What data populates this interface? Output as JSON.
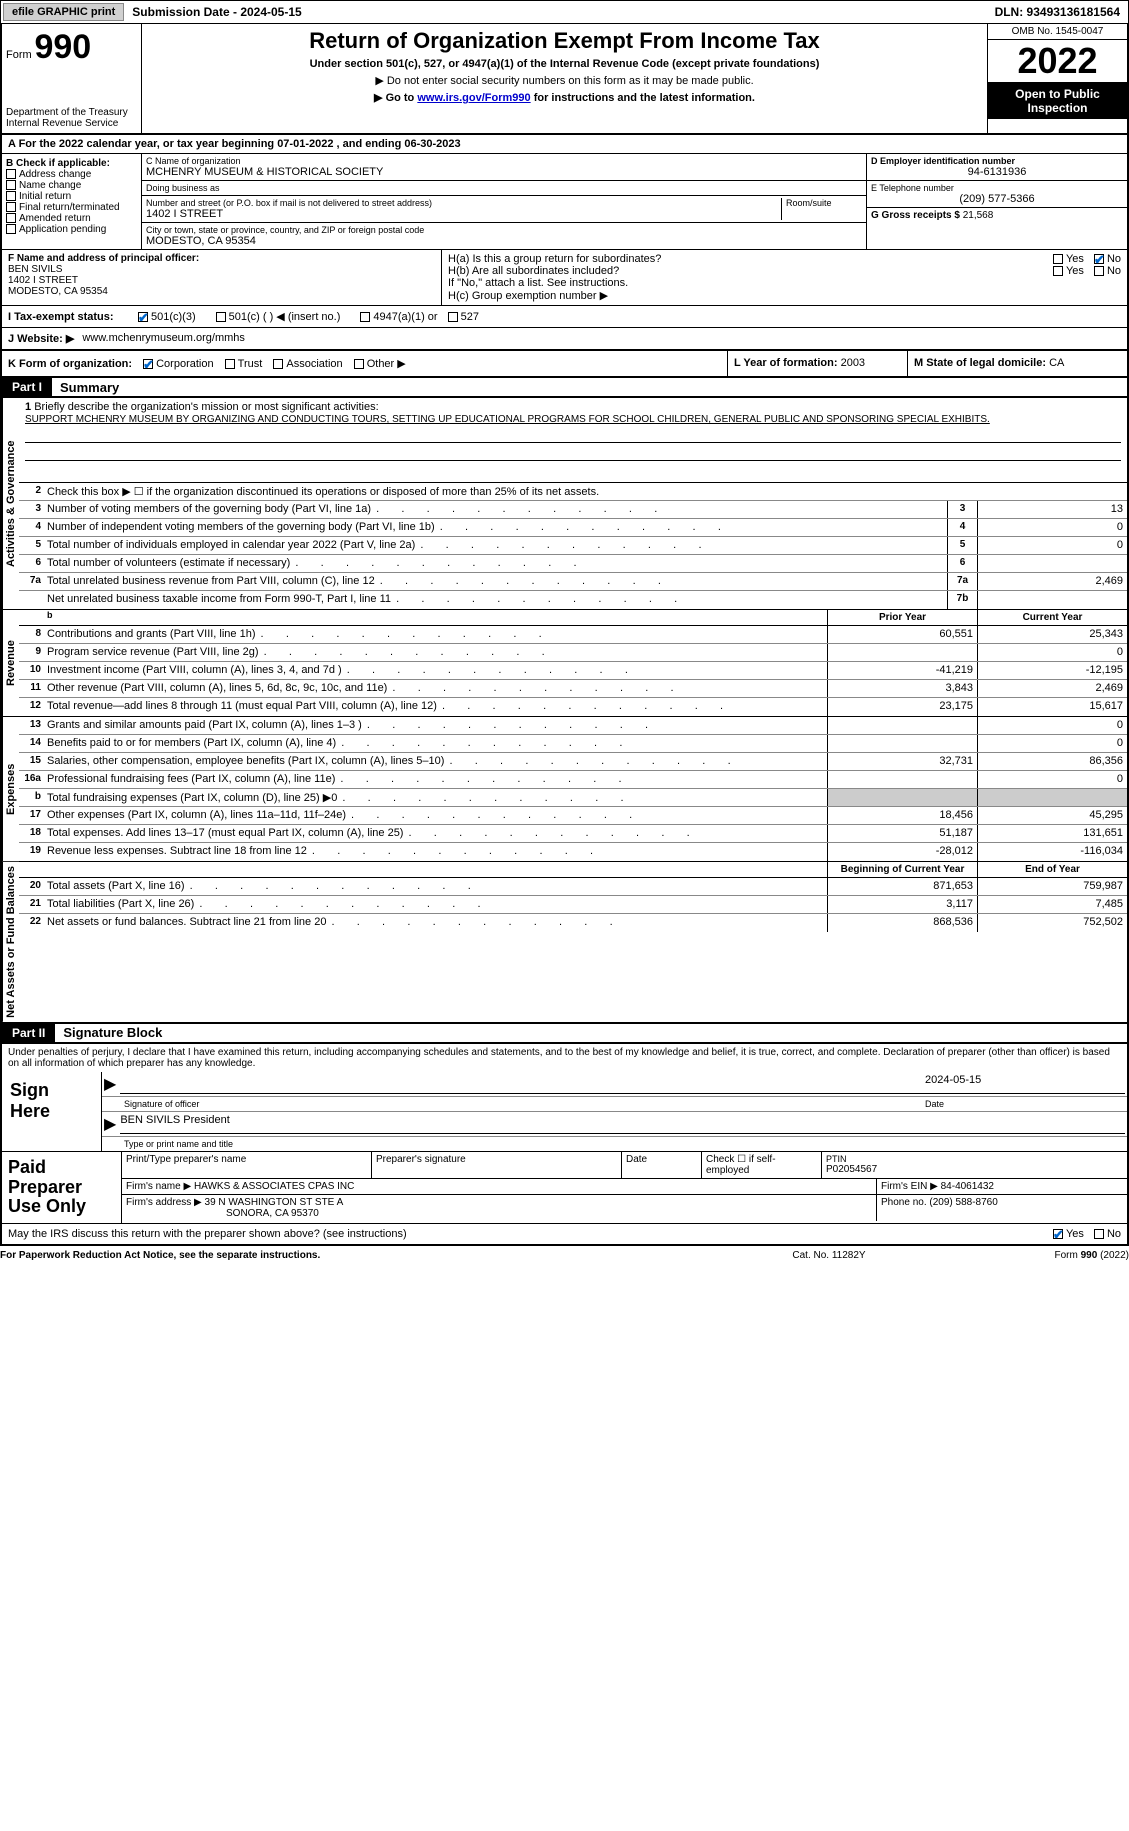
{
  "topbar": {
    "efile_btn": "efile GRAPHIC print",
    "submission_label": "Submission Date - 2024-05-15",
    "dln": "DLN: 93493136181564"
  },
  "header": {
    "form_label": "Form",
    "form_number": "990",
    "dept": "Department of the Treasury Internal Revenue Service",
    "title": "Return of Organization Exempt From Income Tax",
    "subtitle": "Under section 501(c), 527, or 4947(a)(1) of the Internal Revenue Code (except private foundations)",
    "note1": "▶ Do not enter social security numbers on this form as it may be made public.",
    "note2_pre": "▶ Go to ",
    "note2_link": "www.irs.gov/Form990",
    "note2_post": " for instructions and the latest information.",
    "omb": "OMB No. 1545-0047",
    "year": "2022",
    "open": "Open to Public Inspection"
  },
  "period": "A For the 2022 calendar year, or tax year beginning 07-01-2022    , and ending 06-30-2023",
  "boxB": {
    "label": "B Check if applicable:",
    "items": [
      "Address change",
      "Name change",
      "Initial return",
      "Final return/terminated",
      "Amended return",
      "Application pending"
    ]
  },
  "boxC": {
    "name_label": "C Name of organization",
    "name": "MCHENRY MUSEUM & HISTORICAL SOCIETY",
    "dba_label": "Doing business as",
    "dba": "",
    "addr_label": "Number and street (or P.O. box if mail is not delivered to street address)",
    "room_label": "Room/suite",
    "addr": "1402 I STREET",
    "city_label": "City or town, state or province, country, and ZIP or foreign postal code",
    "city": "MODESTO, CA  95354"
  },
  "boxD": {
    "ein_label": "D Employer identification number",
    "ein": "94-6131936",
    "phone_label": "E Telephone number",
    "phone": "(209) 577-5366",
    "gross_label": "G Gross receipts $",
    "gross": "21,568"
  },
  "officer": {
    "label": "F  Name and address of principal officer:",
    "name": "BEN SIVILS",
    "addr1": "1402 I STREET",
    "addr2": "MODESTO, CA  95354"
  },
  "boxH": {
    "ha": "H(a)  Is this a group return for subordinates?",
    "hb": "H(b)  Are all subordinates included?",
    "hb_note": "If \"No,\" attach a list. See instructions.",
    "hc": "H(c)  Group exemption number ▶",
    "yes": "Yes",
    "no": "No"
  },
  "tax_status": {
    "label": "I  Tax-exempt status:",
    "opt1": "501(c)(3)",
    "opt2": "501(c) (  ) ◀ (insert no.)",
    "opt3": "4947(a)(1) or",
    "opt4": "527"
  },
  "website": {
    "label": "J Website: ▶",
    "url": "www.mchenrymuseum.org/mmhs"
  },
  "k_org": {
    "label": "K Form of organization:",
    "corp": "Corporation",
    "trust": "Trust",
    "assoc": "Association",
    "other": "Other ▶",
    "l_label": "L Year of formation:",
    "l_val": "2003",
    "m_label": "M State of legal domicile:",
    "m_val": "CA"
  },
  "part1": {
    "tab": "Part I",
    "title": "Summary",
    "q1_label": "Briefly describe the organization's mission or most significant activities:",
    "q1_text": "SUPPORT MCHENRY MUSEUM BY ORGANIZING AND CONDUCTING TOURS, SETTING UP EDUCATIONAL PROGRAMS FOR SCHOOL CHILDREN, GENERAL PUBLIC AND SPONSORING SPECIAL EXHIBITS.",
    "q2": "Check this box ▶ ☐ if the organization discontinued its operations or disposed of more than 25% of its net assets.",
    "vtab1": "Activities & Governance",
    "vtab2": "Revenue",
    "vtab3": "Expenses",
    "vtab4": "Net Assets or Fund Balances",
    "lines_gov": [
      {
        "n": "3",
        "d": "Number of voting members of the governing body (Part VI, line 1a)",
        "box": "3",
        "v": "13"
      },
      {
        "n": "4",
        "d": "Number of independent voting members of the governing body (Part VI, line 1b)",
        "box": "4",
        "v": "0"
      },
      {
        "n": "5",
        "d": "Total number of individuals employed in calendar year 2022 (Part V, line 2a)",
        "box": "5",
        "v": "0"
      },
      {
        "n": "6",
        "d": "Total number of volunteers (estimate if necessary)",
        "box": "6",
        "v": ""
      },
      {
        "n": "7a",
        "d": "Total unrelated business revenue from Part VIII, column (C), line 12",
        "box": "7a",
        "v": "2,469"
      },
      {
        "n": "",
        "d": "Net unrelated business taxable income from Form 990-T, Part I, line 11",
        "box": "7b",
        "v": ""
      }
    ],
    "col_prior": "Prior Year",
    "col_curr": "Current Year",
    "lines_rev": [
      {
        "n": "8",
        "d": "Contributions and grants (Part VIII, line 1h)",
        "p": "60,551",
        "c": "25,343"
      },
      {
        "n": "9",
        "d": "Program service revenue (Part VIII, line 2g)",
        "p": "",
        "c": "0"
      },
      {
        "n": "10",
        "d": "Investment income (Part VIII, column (A), lines 3, 4, and 7d )",
        "p": "-41,219",
        "c": "-12,195"
      },
      {
        "n": "11",
        "d": "Other revenue (Part VIII, column (A), lines 5, 6d, 8c, 9c, 10c, and 11e)",
        "p": "3,843",
        "c": "2,469"
      },
      {
        "n": "12",
        "d": "Total revenue—add lines 8 through 11 (must equal Part VIII, column (A), line 12)",
        "p": "23,175",
        "c": "15,617"
      }
    ],
    "lines_exp": [
      {
        "n": "13",
        "d": "Grants and similar amounts paid (Part IX, column (A), lines 1–3 )",
        "p": "",
        "c": "0"
      },
      {
        "n": "14",
        "d": "Benefits paid to or for members (Part IX, column (A), line 4)",
        "p": "",
        "c": "0"
      },
      {
        "n": "15",
        "d": "Salaries, other compensation, employee benefits (Part IX, column (A), lines 5–10)",
        "p": "32,731",
        "c": "86,356"
      },
      {
        "n": "16a",
        "d": "Professional fundraising fees (Part IX, column (A), line 11e)",
        "p": "",
        "c": "0"
      },
      {
        "n": "b",
        "d": "Total fundraising expenses (Part IX, column (D), line 25) ▶0",
        "p": "shade",
        "c": "shade"
      },
      {
        "n": "17",
        "d": "Other expenses (Part IX, column (A), lines 11a–11d, 11f–24e)",
        "p": "18,456",
        "c": "45,295"
      },
      {
        "n": "18",
        "d": "Total expenses. Add lines 13–17 (must equal Part IX, column (A), line 25)",
        "p": "51,187",
        "c": "131,651"
      },
      {
        "n": "19",
        "d": "Revenue less expenses. Subtract line 18 from line 12",
        "p": "-28,012",
        "c": "-116,034"
      }
    ],
    "col_beg": "Beginning of Current Year",
    "col_end": "End of Year",
    "lines_net": [
      {
        "n": "20",
        "d": "Total assets (Part X, line 16)",
        "p": "871,653",
        "c": "759,987"
      },
      {
        "n": "21",
        "d": "Total liabilities (Part X, line 26)",
        "p": "3,117",
        "c": "7,485"
      },
      {
        "n": "22",
        "d": "Net assets or fund balances. Subtract line 21 from line 20",
        "p": "868,536",
        "c": "752,502"
      }
    ]
  },
  "part2": {
    "tab": "Part II",
    "title": "Signature Block",
    "decl": "Under penalties of perjury, I declare that I have examined this return, including accompanying schedules and statements, and to the best of my knowledge and belief, it is true, correct, and complete. Declaration of preparer (other than officer) is based on all information of which preparer has any knowledge.",
    "sign_here": "Sign Here",
    "sig_officer": "Signature of officer",
    "sig_date_val": "2024-05-15",
    "date": "Date",
    "officer_name": "BEN SIVILS  President",
    "officer_type": "Type or print name and title",
    "paid_prep": "Paid Preparer Use Only",
    "print_name_l": "Print/Type preparer's name",
    "prep_sig_l": "Preparer's signature",
    "date_l": "Date",
    "check_self": "Check ☐ if self-employed",
    "ptin_l": "PTIN",
    "ptin": "P02054567",
    "firm_name_l": "Firm's name    ▶",
    "firm_name": "HAWKS & ASSOCIATES CPAS INC",
    "firm_ein_l": "Firm's EIN ▶",
    "firm_ein": "84-4061432",
    "firm_addr_l": "Firm's address ▶",
    "firm_addr1": "39 N WASHINGTON ST STE A",
    "firm_addr2": "SONORA, CA  95370",
    "phone_l": "Phone no.",
    "phone": "(209) 588-8760",
    "discuss": "May the IRS discuss this return with the preparer shown above? (see instructions)",
    "yes": "Yes",
    "no": "No"
  },
  "footer": {
    "left": "For Paperwork Reduction Act Notice, see the separate instructions.",
    "mid": "Cat. No. 11282Y",
    "right": "Form 990 (2022)"
  }
}
